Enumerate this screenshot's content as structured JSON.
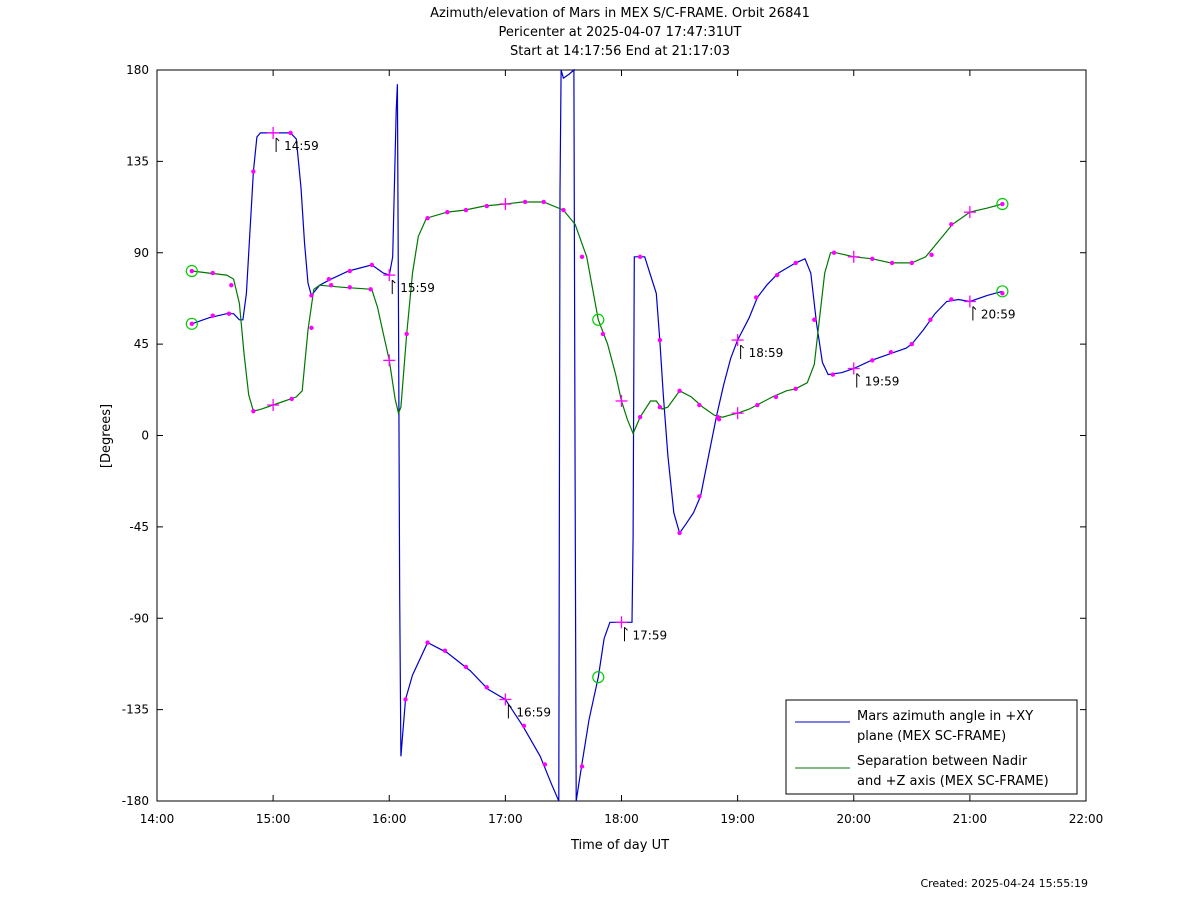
{
  "titles": [
    "Azimuth/elevation of Mars in MEX S/C-FRAME.  Orbit 26841",
    "Pericenter at 2025-04-07 17:47:31UT",
    "Start at 14:17:56 End at 21:17:03"
  ],
  "footer": "Created: 2025-04-24 15:55:19",
  "chart_data": {
    "type": "line",
    "xlabel": "Time of day UT",
    "ylabel": "[Degrees]",
    "xlim": [
      14.0,
      22.0
    ],
    "ylim": [
      -180,
      180
    ],
    "x_ticks": [
      {
        "v": 14,
        "label": "14:00"
      },
      {
        "v": 15,
        "label": "15:00"
      },
      {
        "v": 16,
        "label": "16:00"
      },
      {
        "v": 17,
        "label": "17:00"
      },
      {
        "v": 18,
        "label": "18:00"
      },
      {
        "v": 19,
        "label": "19:00"
      },
      {
        "v": 20,
        "label": "20:00"
      },
      {
        "v": 21,
        "label": "21:00"
      },
      {
        "v": 22,
        "label": "22:00"
      }
    ],
    "y_ticks": [
      {
        "v": 180,
        "label": "180"
      },
      {
        "v": 135,
        "label": "135"
      },
      {
        "v": 90,
        "label": "90"
      },
      {
        "v": 45,
        "label": "45"
      },
      {
        "v": 0,
        "label": "0"
      },
      {
        "v": -45,
        "label": "-45"
      },
      {
        "v": -90,
        "label": "-90"
      },
      {
        "v": -135,
        "label": "-135"
      },
      {
        "v": -180,
        "label": "-180"
      }
    ],
    "legend_position": "bottom-right",
    "grid": false,
    "series": [
      {
        "name": "Mars azimuth angle in +XY plane (MEX SC-FRAME)",
        "legend_lines": [
          "Mars azimuth angle in +XY",
          "plane (MEX SC-FRAME)"
        ],
        "color": "#0000cc",
        "points": [
          [
            14.3,
            55
          ],
          [
            14.45,
            58
          ],
          [
            14.6,
            60
          ],
          [
            14.66,
            60
          ],
          [
            14.71,
            57
          ],
          [
            14.74,
            57
          ],
          [
            14.77,
            70
          ],
          [
            14.8,
            100
          ],
          [
            14.83,
            130
          ],
          [
            14.86,
            147
          ],
          [
            14.89,
            149
          ],
          [
            15.0,
            149
          ],
          [
            15.15,
            149
          ],
          [
            15.2,
            146
          ],
          [
            15.24,
            122
          ],
          [
            15.27,
            95
          ],
          [
            15.3,
            75
          ],
          [
            15.33,
            69
          ],
          [
            15.4,
            74
          ],
          [
            15.5,
            77
          ],
          [
            15.65,
            81
          ],
          [
            15.85,
            84
          ],
          [
            15.95,
            80
          ],
          [
            16.0,
            79
          ],
          [
            16.03,
            88
          ],
          [
            16.06,
            160
          ],
          [
            16.07,
            173
          ],
          [
            16.08,
            60
          ],
          [
            16.09,
            -80
          ],
          [
            16.1,
            -158
          ],
          [
            16.14,
            -130
          ],
          [
            16.2,
            -118
          ],
          [
            16.33,
            -102
          ],
          [
            16.5,
            -107
          ],
          [
            16.7,
            -116
          ],
          [
            16.85,
            -125
          ],
          [
            17.0,
            -130
          ],
          [
            17.15,
            -143
          ],
          [
            17.3,
            -158
          ],
          [
            17.4,
            -172
          ],
          [
            17.46,
            -180
          ],
          [
            17.47,
            120
          ],
          [
            17.48,
            180
          ],
          [
            17.5,
            176
          ],
          [
            17.55,
            178
          ],
          [
            17.59,
            180
          ],
          [
            17.6,
            -20
          ],
          [
            17.61,
            -180
          ],
          [
            17.65,
            -165
          ],
          [
            17.72,
            -140
          ],
          [
            17.8,
            -119
          ],
          [
            17.85,
            -100
          ],
          [
            17.9,
            -92
          ],
          [
            17.95,
            -92
          ],
          [
            18.0,
            -92
          ],
          [
            18.07,
            -92
          ],
          [
            18.09,
            -92
          ],
          [
            18.1,
            -50
          ],
          [
            18.11,
            88
          ],
          [
            18.15,
            88
          ],
          [
            18.2,
            88
          ],
          [
            18.3,
            70
          ],
          [
            18.33,
            47
          ],
          [
            18.36,
            20
          ],
          [
            18.4,
            -10
          ],
          [
            18.45,
            -38
          ],
          [
            18.5,
            -48
          ],
          [
            18.55,
            -44
          ],
          [
            18.62,
            -38
          ],
          [
            18.68,
            -30
          ],
          [
            18.75,
            -10
          ],
          [
            18.82,
            10
          ],
          [
            18.88,
            25
          ],
          [
            18.94,
            38
          ],
          [
            19.0,
            47
          ],
          [
            19.1,
            58
          ],
          [
            19.17,
            68
          ],
          [
            19.25,
            74
          ],
          [
            19.35,
            80
          ],
          [
            19.5,
            85
          ],
          [
            19.58,
            87
          ],
          [
            19.63,
            80
          ],
          [
            19.68,
            55
          ],
          [
            19.73,
            36
          ],
          [
            19.78,
            30
          ],
          [
            19.9,
            31
          ],
          [
            20.0,
            33
          ],
          [
            20.15,
            37
          ],
          [
            20.3,
            40
          ],
          [
            20.45,
            43
          ],
          [
            20.5,
            45
          ],
          [
            20.6,
            52
          ],
          [
            20.7,
            60
          ],
          [
            20.8,
            66
          ],
          [
            20.9,
            67
          ],
          [
            21.0,
            66
          ],
          [
            21.15,
            69
          ],
          [
            21.28,
            71
          ]
        ],
        "markers": [
          [
            14.3,
            55
          ],
          [
            14.48,
            59
          ],
          [
            14.62,
            60
          ],
          [
            14.83,
            130
          ],
          [
            15.15,
            149
          ],
          [
            15.33,
            69
          ],
          [
            15.48,
            77
          ],
          [
            15.66,
            81
          ],
          [
            15.85,
            84
          ],
          [
            16.14,
            -130
          ],
          [
            16.33,
            -102
          ],
          [
            16.48,
            -106
          ],
          [
            16.66,
            -114
          ],
          [
            16.84,
            -124
          ],
          [
            17.16,
            -143
          ],
          [
            17.34,
            -162
          ],
          [
            17.66,
            -163
          ],
          [
            18.16,
            88
          ],
          [
            18.33,
            47
          ],
          [
            18.5,
            -48
          ],
          [
            18.67,
            -30
          ],
          [
            18.84,
            8
          ],
          [
            19.16,
            68
          ],
          [
            19.34,
            79
          ],
          [
            19.5,
            85
          ],
          [
            19.82,
            30
          ],
          [
            20.16,
            37
          ],
          [
            20.32,
            41
          ],
          [
            20.5,
            45
          ],
          [
            20.66,
            57
          ],
          [
            20.84,
            67
          ],
          [
            21.28,
            70
          ]
        ],
        "hour_marks": [
          [
            15.0,
            149
          ],
          [
            16.0,
            79
          ],
          [
            17.0,
            -130
          ],
          [
            18.0,
            -92
          ],
          [
            19.0,
            47
          ],
          [
            20.0,
            33
          ],
          [
            21.0,
            66
          ]
        ],
        "start_end": [
          [
            14.3,
            55
          ],
          [
            17.8,
            -119
          ],
          [
            21.28,
            71
          ]
        ]
      },
      {
        "name": "Separation between Nadir and +Z axis (MEX SC-FRAME)",
        "legend_lines": [
          "Separation between Nadir",
          "and +Z axis (MEX SC-FRAME)"
        ],
        "color": "#007700",
        "points": [
          [
            14.3,
            81
          ],
          [
            14.45,
            80
          ],
          [
            14.6,
            79
          ],
          [
            14.66,
            77
          ],
          [
            14.71,
            65
          ],
          [
            14.75,
            40
          ],
          [
            14.79,
            20
          ],
          [
            14.83,
            12
          ],
          [
            14.9,
            13
          ],
          [
            15.0,
            15
          ],
          [
            15.1,
            17
          ],
          [
            15.2,
            19
          ],
          [
            15.25,
            22
          ],
          [
            15.3,
            52
          ],
          [
            15.35,
            72
          ],
          [
            15.4,
            74
          ],
          [
            15.6,
            73
          ],
          [
            15.85,
            72
          ],
          [
            15.9,
            63
          ],
          [
            15.95,
            50
          ],
          [
            16.0,
            37
          ],
          [
            16.05,
            18
          ],
          [
            16.08,
            11
          ],
          [
            16.1,
            14
          ],
          [
            16.15,
            50
          ],
          [
            16.2,
            80
          ],
          [
            16.25,
            98
          ],
          [
            16.32,
            107
          ],
          [
            16.5,
            110
          ],
          [
            16.65,
            111
          ],
          [
            16.82,
            113
          ],
          [
            17.0,
            114
          ],
          [
            17.15,
            115
          ],
          [
            17.33,
            115
          ],
          [
            17.5,
            111
          ],
          [
            17.6,
            104
          ],
          [
            17.7,
            88
          ],
          [
            17.8,
            57
          ],
          [
            17.88,
            45
          ],
          [
            17.95,
            30
          ],
          [
            18.0,
            17
          ],
          [
            18.05,
            8
          ],
          [
            18.1,
            1
          ],
          [
            18.16,
            9
          ],
          [
            18.25,
            17
          ],
          [
            18.3,
            17
          ],
          [
            18.35,
            13
          ],
          [
            18.4,
            14
          ],
          [
            18.5,
            22
          ],
          [
            18.6,
            19
          ],
          [
            18.7,
            14
          ],
          [
            18.8,
            10
          ],
          [
            18.87,
            9
          ],
          [
            18.93,
            10
          ],
          [
            19.0,
            11
          ],
          [
            19.1,
            13
          ],
          [
            19.2,
            16
          ],
          [
            19.3,
            19
          ],
          [
            19.42,
            22
          ],
          [
            19.5,
            23
          ],
          [
            19.6,
            26
          ],
          [
            19.66,
            35
          ],
          [
            19.7,
            55
          ],
          [
            19.75,
            80
          ],
          [
            19.8,
            90
          ],
          [
            19.85,
            90
          ],
          [
            20.0,
            88
          ],
          [
            20.16,
            87
          ],
          [
            20.32,
            85
          ],
          [
            20.5,
            85
          ],
          [
            20.62,
            88
          ],
          [
            20.75,
            97
          ],
          [
            20.85,
            104
          ],
          [
            20.95,
            108
          ],
          [
            21.0,
            110
          ],
          [
            21.15,
            112
          ],
          [
            21.28,
            114
          ]
        ],
        "markers": [
          [
            14.3,
            81
          ],
          [
            14.48,
            80
          ],
          [
            14.64,
            74
          ],
          [
            14.83,
            12
          ],
          [
            15.16,
            18
          ],
          [
            15.33,
            53
          ],
          [
            15.5,
            74
          ],
          [
            15.66,
            73
          ],
          [
            15.84,
            72
          ],
          [
            16.15,
            50
          ],
          [
            16.33,
            107
          ],
          [
            16.5,
            110
          ],
          [
            16.66,
            111
          ],
          [
            16.84,
            113
          ],
          [
            17.17,
            115
          ],
          [
            17.33,
            115
          ],
          [
            17.5,
            111
          ],
          [
            17.66,
            88
          ],
          [
            17.84,
            50
          ],
          [
            18.16,
            9
          ],
          [
            18.33,
            14
          ],
          [
            18.5,
            22
          ],
          [
            18.67,
            15
          ],
          [
            18.83,
            9
          ],
          [
            19.17,
            15
          ],
          [
            19.33,
            19
          ],
          [
            19.5,
            23
          ],
          [
            19.66,
            57
          ],
          [
            19.83,
            90
          ],
          [
            20.16,
            87
          ],
          [
            20.33,
            85
          ],
          [
            20.5,
            85
          ],
          [
            20.67,
            89
          ],
          [
            20.84,
            104
          ],
          [
            21.28,
            114
          ]
        ],
        "hour_marks": [
          [
            15.0,
            15
          ],
          [
            16.0,
            37
          ],
          [
            17.0,
            114
          ],
          [
            18.0,
            17
          ],
          [
            19.0,
            11
          ],
          [
            20.0,
            88
          ],
          [
            21.0,
            110
          ]
        ],
        "start_end": [
          [
            14.3,
            81
          ],
          [
            17.8,
            57
          ],
          [
            21.28,
            114
          ]
        ]
      }
    ],
    "annotations": [
      {
        "x": 15.0,
        "y": 149,
        "label": "14:59"
      },
      {
        "x": 16.0,
        "y": 79,
        "label": "15:59"
      },
      {
        "x": 17.0,
        "y": -130,
        "label": "16:59"
      },
      {
        "x": 18.0,
        "y": -92,
        "label": "17:59"
      },
      {
        "x": 19.0,
        "y": 47,
        "label": "18:59"
      },
      {
        "x": 20.0,
        "y": 33,
        "label": "19:59"
      },
      {
        "x": 21.0,
        "y": 66,
        "label": "20:59"
      }
    ],
    "marker_color": "#ff00ff",
    "start_end_color": "#00cc00"
  }
}
